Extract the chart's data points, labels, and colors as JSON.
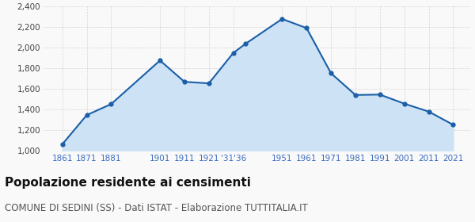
{
  "years": [
    1861,
    1871,
    1881,
    1901,
    1911,
    1921,
    1931,
    1936,
    1951,
    1961,
    1971,
    1981,
    1991,
    2001,
    2011,
    2021
  ],
  "population": [
    1065,
    1348,
    1455,
    1878,
    1671,
    1656,
    1951,
    2040,
    2281,
    2192,
    1754,
    1543,
    1547,
    1459,
    1382,
    1254
  ],
  "line_color": "#1a5fa8",
  "fill_color": "#cde3f5",
  "marker_color": "#1a5fa8",
  "grid_color": "#cccccc",
  "background_color": "#f9f9f9",
  "ylim": [
    1000,
    2400
  ],
  "yticks": [
    1000,
    1200,
    1400,
    1600,
    1800,
    2000,
    2200,
    2400
  ],
  "xtick_positions": [
    1861,
    1871,
    1881,
    1901,
    1911,
    1921,
    1931,
    1951,
    1961,
    1971,
    1981,
    1991,
    2001,
    2011,
    2021
  ],
  "xtick_labels": [
    "1861",
    "1871",
    "1881",
    "1901",
    "1911",
    "1921",
    "'31'36",
    "1951",
    "1961",
    "1971",
    "1981",
    "1991",
    "2001",
    "2011",
    "2021"
  ],
  "xlim": [
    1853,
    2028
  ],
  "title": "Popolazione residente ai censimenti",
  "subtitle": "COMUNE DI SEDINI (SS) - Dati ISTAT - Elaborazione TUTTITALIA.IT",
  "title_fontsize": 11,
  "subtitle_fontsize": 8.5,
  "tick_label_color": "#3a6bbf",
  "ytick_label_color": "#444444"
}
